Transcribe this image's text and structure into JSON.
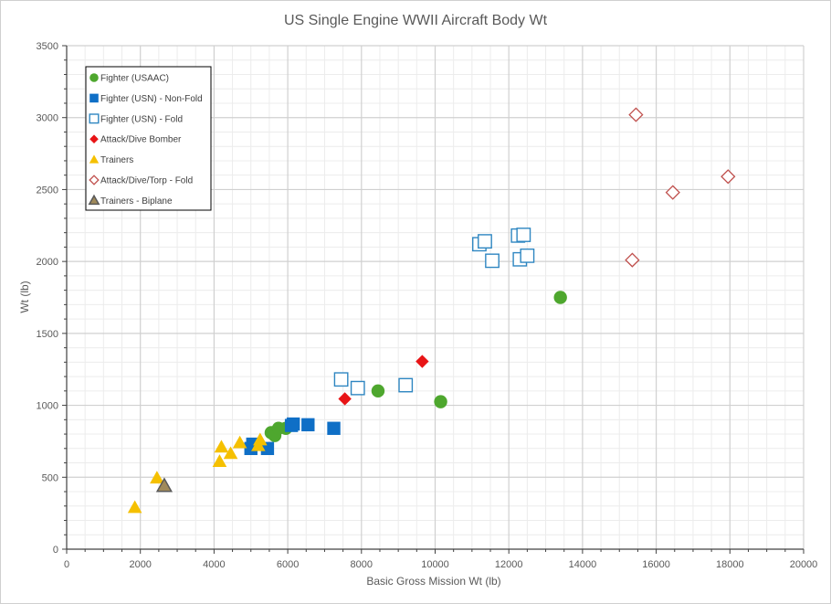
{
  "chart_data": {
    "type": "scatter",
    "title": "US Single Engine WWII Aircraft Body Wt",
    "xlabel": "Basic Gross Mission Wt (lb)",
    "ylabel": "Wt (lb)",
    "xlim": [
      0,
      20000
    ],
    "ylim": [
      0,
      3500
    ],
    "xticks": [
      0,
      2000,
      4000,
      6000,
      8000,
      10000,
      12000,
      14000,
      16000,
      18000,
      20000
    ],
    "yticks": [
      0,
      500,
      1000,
      1500,
      2000,
      2500,
      3000,
      3500
    ],
    "grid": true,
    "legend_position": "top-left",
    "series": [
      {
        "name": "Fighter (USAAC)",
        "marker": "circle-filled",
        "color": "#4ea72e",
        "points": [
          [
            5550,
            810
          ],
          [
            5650,
            790
          ],
          [
            5750,
            840
          ],
          [
            5950,
            840
          ],
          [
            8450,
            1100
          ],
          [
            10150,
            1025
          ],
          [
            13400,
            1750
          ]
        ]
      },
      {
        "name": "Fighter (USN) - Non-Fold",
        "marker": "square-filled",
        "color": "#0f6fc6",
        "points": [
          [
            5000,
            700
          ],
          [
            5050,
            730
          ],
          [
            5450,
            700
          ],
          [
            6100,
            860
          ],
          [
            6150,
            870
          ],
          [
            6550,
            865
          ],
          [
            7250,
            840
          ]
        ]
      },
      {
        "name": "Fighter (USN) - Fold",
        "marker": "square-open",
        "color": "#2e86c1",
        "points": [
          [
            7450,
            1180
          ],
          [
            7900,
            1120
          ],
          [
            9200,
            1140
          ],
          [
            11200,
            2120
          ],
          [
            11350,
            2140
          ],
          [
            11550,
            2005
          ],
          [
            12250,
            2180
          ],
          [
            12400,
            2185
          ],
          [
            12300,
            2015
          ],
          [
            12500,
            2040
          ]
        ]
      },
      {
        "name": "Attack/Dive Bomber",
        "marker": "diamond-filled",
        "color": "#e81416",
        "points": [
          [
            7550,
            1045
          ],
          [
            9650,
            1305
          ]
        ]
      },
      {
        "name": "Trainers",
        "marker": "triangle-filled",
        "color": "#f5c000",
        "points": [
          [
            1850,
            290
          ],
          [
            2450,
            495
          ],
          [
            4150,
            610
          ],
          [
            4200,
            710
          ],
          [
            4450,
            665
          ],
          [
            4700,
            740
          ],
          [
            5200,
            720
          ],
          [
            5250,
            760
          ]
        ]
      },
      {
        "name": "Attack/Dive/Torp - Fold",
        "marker": "diamond-open",
        "color": "#c0504d",
        "points": [
          [
            15350,
            2010
          ],
          [
            15450,
            3020
          ],
          [
            16450,
            2480
          ],
          [
            17950,
            2590
          ]
        ]
      },
      {
        "name": "Trainers - Biplane",
        "marker": "triangle-filled-outlined",
        "color": "#a08a5a",
        "stroke": "#595959",
        "points": [
          [
            2650,
            440
          ]
        ]
      }
    ]
  }
}
